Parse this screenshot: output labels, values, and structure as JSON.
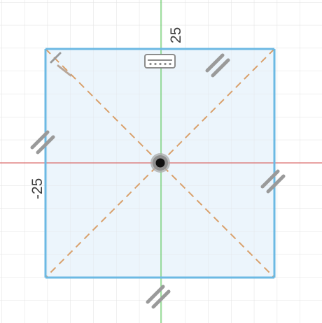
{
  "sketch": {
    "dimensions": {
      "top": "25",
      "left": "-25"
    },
    "constraints": {
      "top_edge": "horizontal-constraint-icon",
      "parallel_top_right": "parallel-constraint-icon",
      "parallel_left": "parallel-constraint-icon",
      "parallel_right": "parallel-constraint-icon",
      "parallel_bottom": "parallel-constraint-icon",
      "perpendicular_corner": "perpendicular-constraint-icon"
    },
    "center_point": "midpoint-coincident-icon",
    "colors": {
      "grid": "#e0e0e0",
      "x_axis": "#d96a6a",
      "y_axis": "#5fc85f",
      "profile_fill": "#eaf4fc",
      "profile_edge": "#6cb9e3",
      "construction_line": "#d9a06b",
      "constraint_icon": "#9a9a9a"
    }
  }
}
